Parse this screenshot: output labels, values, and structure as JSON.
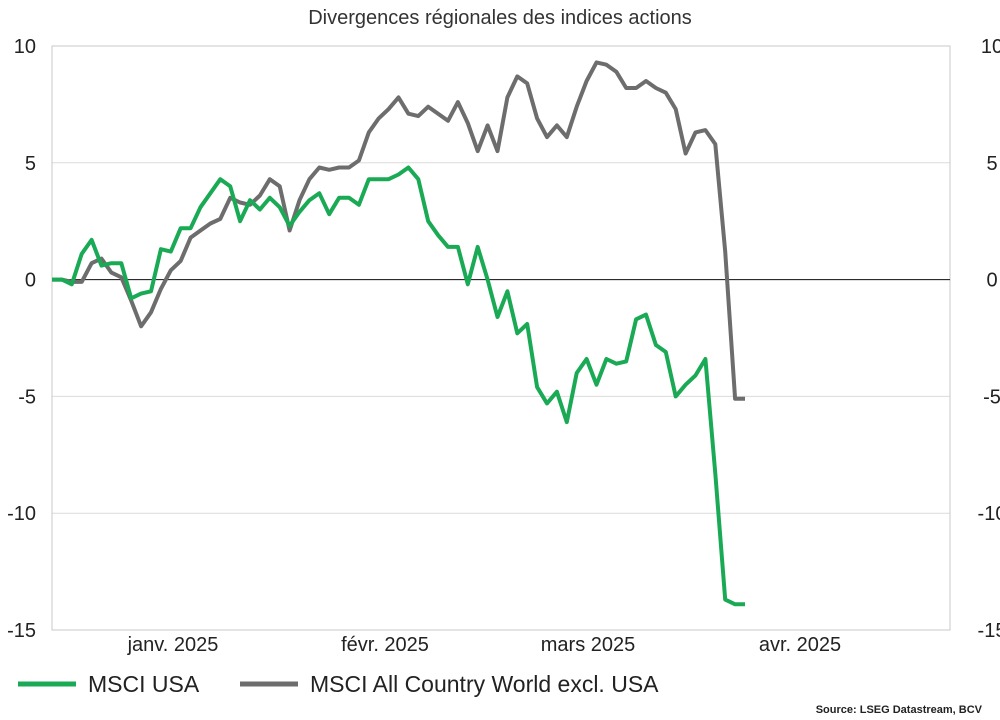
{
  "chart_data": {
    "type": "line",
    "title": "Divergences régionales des indices actions",
    "source": "Source: LSEG Datastream, BCV",
    "ylim": [
      -15,
      10
    ],
    "y_ticks": [
      "10",
      "5",
      "0",
      "-5",
      "-10",
      "-15"
    ],
    "y_tick_values": [
      10,
      5,
      0,
      -5,
      -10,
      -15
    ],
    "x_tick_labels": [
      "janv. 2025",
      "févr. 2025",
      "mars 2025",
      "avr. 2025"
    ],
    "grid": true,
    "legend_position": "bottom",
    "series": [
      {
        "name": "MSCI USA",
        "color": "#1aaa55",
        "values": [
          0,
          0,
          -0.2,
          1.1,
          1.7,
          0.6,
          0.7,
          0.7,
          -0.8,
          -0.6,
          -0.5,
          1.3,
          1.2,
          2.2,
          2.2,
          3.1,
          3.7,
          4.3,
          4.0,
          2.5,
          3.4,
          3.0,
          3.5,
          3.1,
          2.3,
          2.9,
          3.4,
          3.7,
          2.8,
          3.5,
          3.5,
          3.2,
          4.3,
          4.3,
          4.3,
          4.5,
          4.8,
          4.3,
          2.5,
          1.9,
          1.4,
          1.4,
          -0.2,
          1.4,
          0.0,
          -1.6,
          -0.5,
          -2.3,
          -1.9,
          -4.6,
          -5.3,
          -4.8,
          -6.1,
          -4.0,
          -3.4,
          -4.5,
          -3.4,
          -3.6,
          -3.5,
          -1.7,
          -1.5,
          -2.8,
          -3.1,
          -5.0,
          -4.5,
          -4.1,
          -3.4,
          -8.3,
          -13.7,
          -13.9,
          -13.9
        ]
      },
      {
        "name": "MSCI All Country World excl. USA",
        "color": "#6d6d6d",
        "values": [
          0,
          0,
          -0.1,
          -0.1,
          0.7,
          0.9,
          0.3,
          0.1,
          -0.9,
          -2.0,
          -1.4,
          -0.4,
          0.4,
          0.8,
          1.8,
          2.1,
          2.4,
          2.6,
          3.5,
          3.3,
          3.2,
          3.6,
          4.3,
          4.0,
          2.1,
          3.4,
          4.3,
          4.8,
          4.7,
          4.8,
          4.8,
          5.1,
          6.3,
          6.9,
          7.3,
          7.8,
          7.1,
          7.0,
          7.4,
          7.1,
          6.8,
          7.6,
          6.7,
          5.5,
          6.6,
          5.5,
          7.8,
          8.7,
          8.4,
          6.9,
          6.1,
          6.6,
          6.1,
          7.4,
          8.5,
          9.3,
          9.2,
          8.9,
          8.2,
          8.2,
          8.5,
          8.2,
          8.0,
          7.3,
          5.4,
          6.3,
          6.4,
          5.8,
          1.2,
          -5.1,
          -5.1
        ]
      }
    ]
  }
}
